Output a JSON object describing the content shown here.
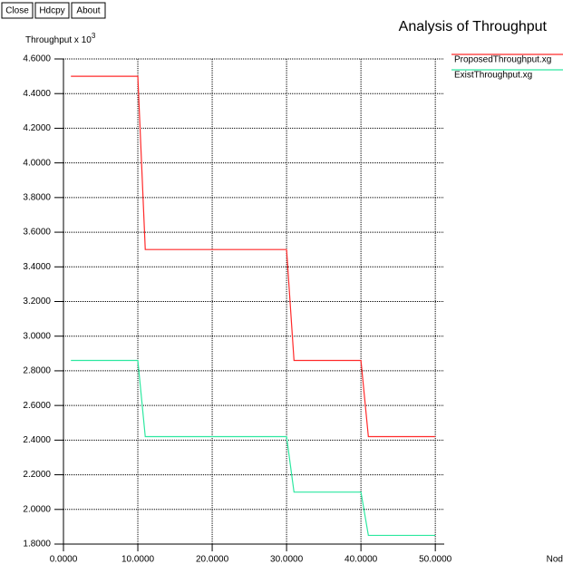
{
  "buttons": [
    "Close",
    "Hdcpy",
    "About"
  ],
  "chart_data": {
    "type": "line",
    "title": "Analysis of Throughput",
    "ylabel": "Throughput x 10",
    "ylabel_exponent": "3",
    "xlabel": "Nod",
    "xlim": [
      0,
      51.2
    ],
    "ylim": [
      1.8,
      4.6
    ],
    "xticks": [
      {
        "value": 0,
        "label": "0.0000"
      },
      {
        "value": 10,
        "label": "10.0000"
      },
      {
        "value": 20,
        "label": "20.0000"
      },
      {
        "value": 30,
        "label": "30.0000"
      },
      {
        "value": 40,
        "label": "40.0000"
      },
      {
        "value": 50,
        "label": "50.0000"
      }
    ],
    "yticks": [
      {
        "value": 1.8,
        "label": "1.8000"
      },
      {
        "value": 2.0,
        "label": "2.0000"
      },
      {
        "value": 2.2,
        "label": "2.2000"
      },
      {
        "value": 2.4,
        "label": "2.4000"
      },
      {
        "value": 2.6,
        "label": "2.6000"
      },
      {
        "value": 2.8,
        "label": "2.8000"
      },
      {
        "value": 3.0,
        "label": "3.0000"
      },
      {
        "value": 3.2,
        "label": "3.2000"
      },
      {
        "value": 3.4,
        "label": "3.4000"
      },
      {
        "value": 3.6,
        "label": "3.6000"
      },
      {
        "value": 3.8,
        "label": "3.8000"
      },
      {
        "value": 4.0,
        "label": "4.0000"
      },
      {
        "value": 4.2,
        "label": "4.2000"
      },
      {
        "value": 4.4,
        "label": "4.4000"
      },
      {
        "value": 4.6,
        "label": "4.6000"
      }
    ],
    "grid": true,
    "series": [
      {
        "name": "ProposedThroughput.xg",
        "color": "#ff2a2a",
        "x": [
          1,
          10,
          11,
          30,
          31,
          40,
          41,
          50
        ],
        "values": [
          4.5,
          4.5,
          3.5,
          3.5,
          2.86,
          2.86,
          2.42,
          2.42
        ]
      },
      {
        "name": "ExistThroughput.xg",
        "color": "#2de8a0",
        "x": [
          1,
          10,
          11,
          30,
          31,
          40,
          41,
          50
        ],
        "values": [
          2.86,
          2.86,
          2.42,
          2.42,
          2.1,
          2.1,
          1.85,
          1.85
        ]
      }
    ]
  }
}
